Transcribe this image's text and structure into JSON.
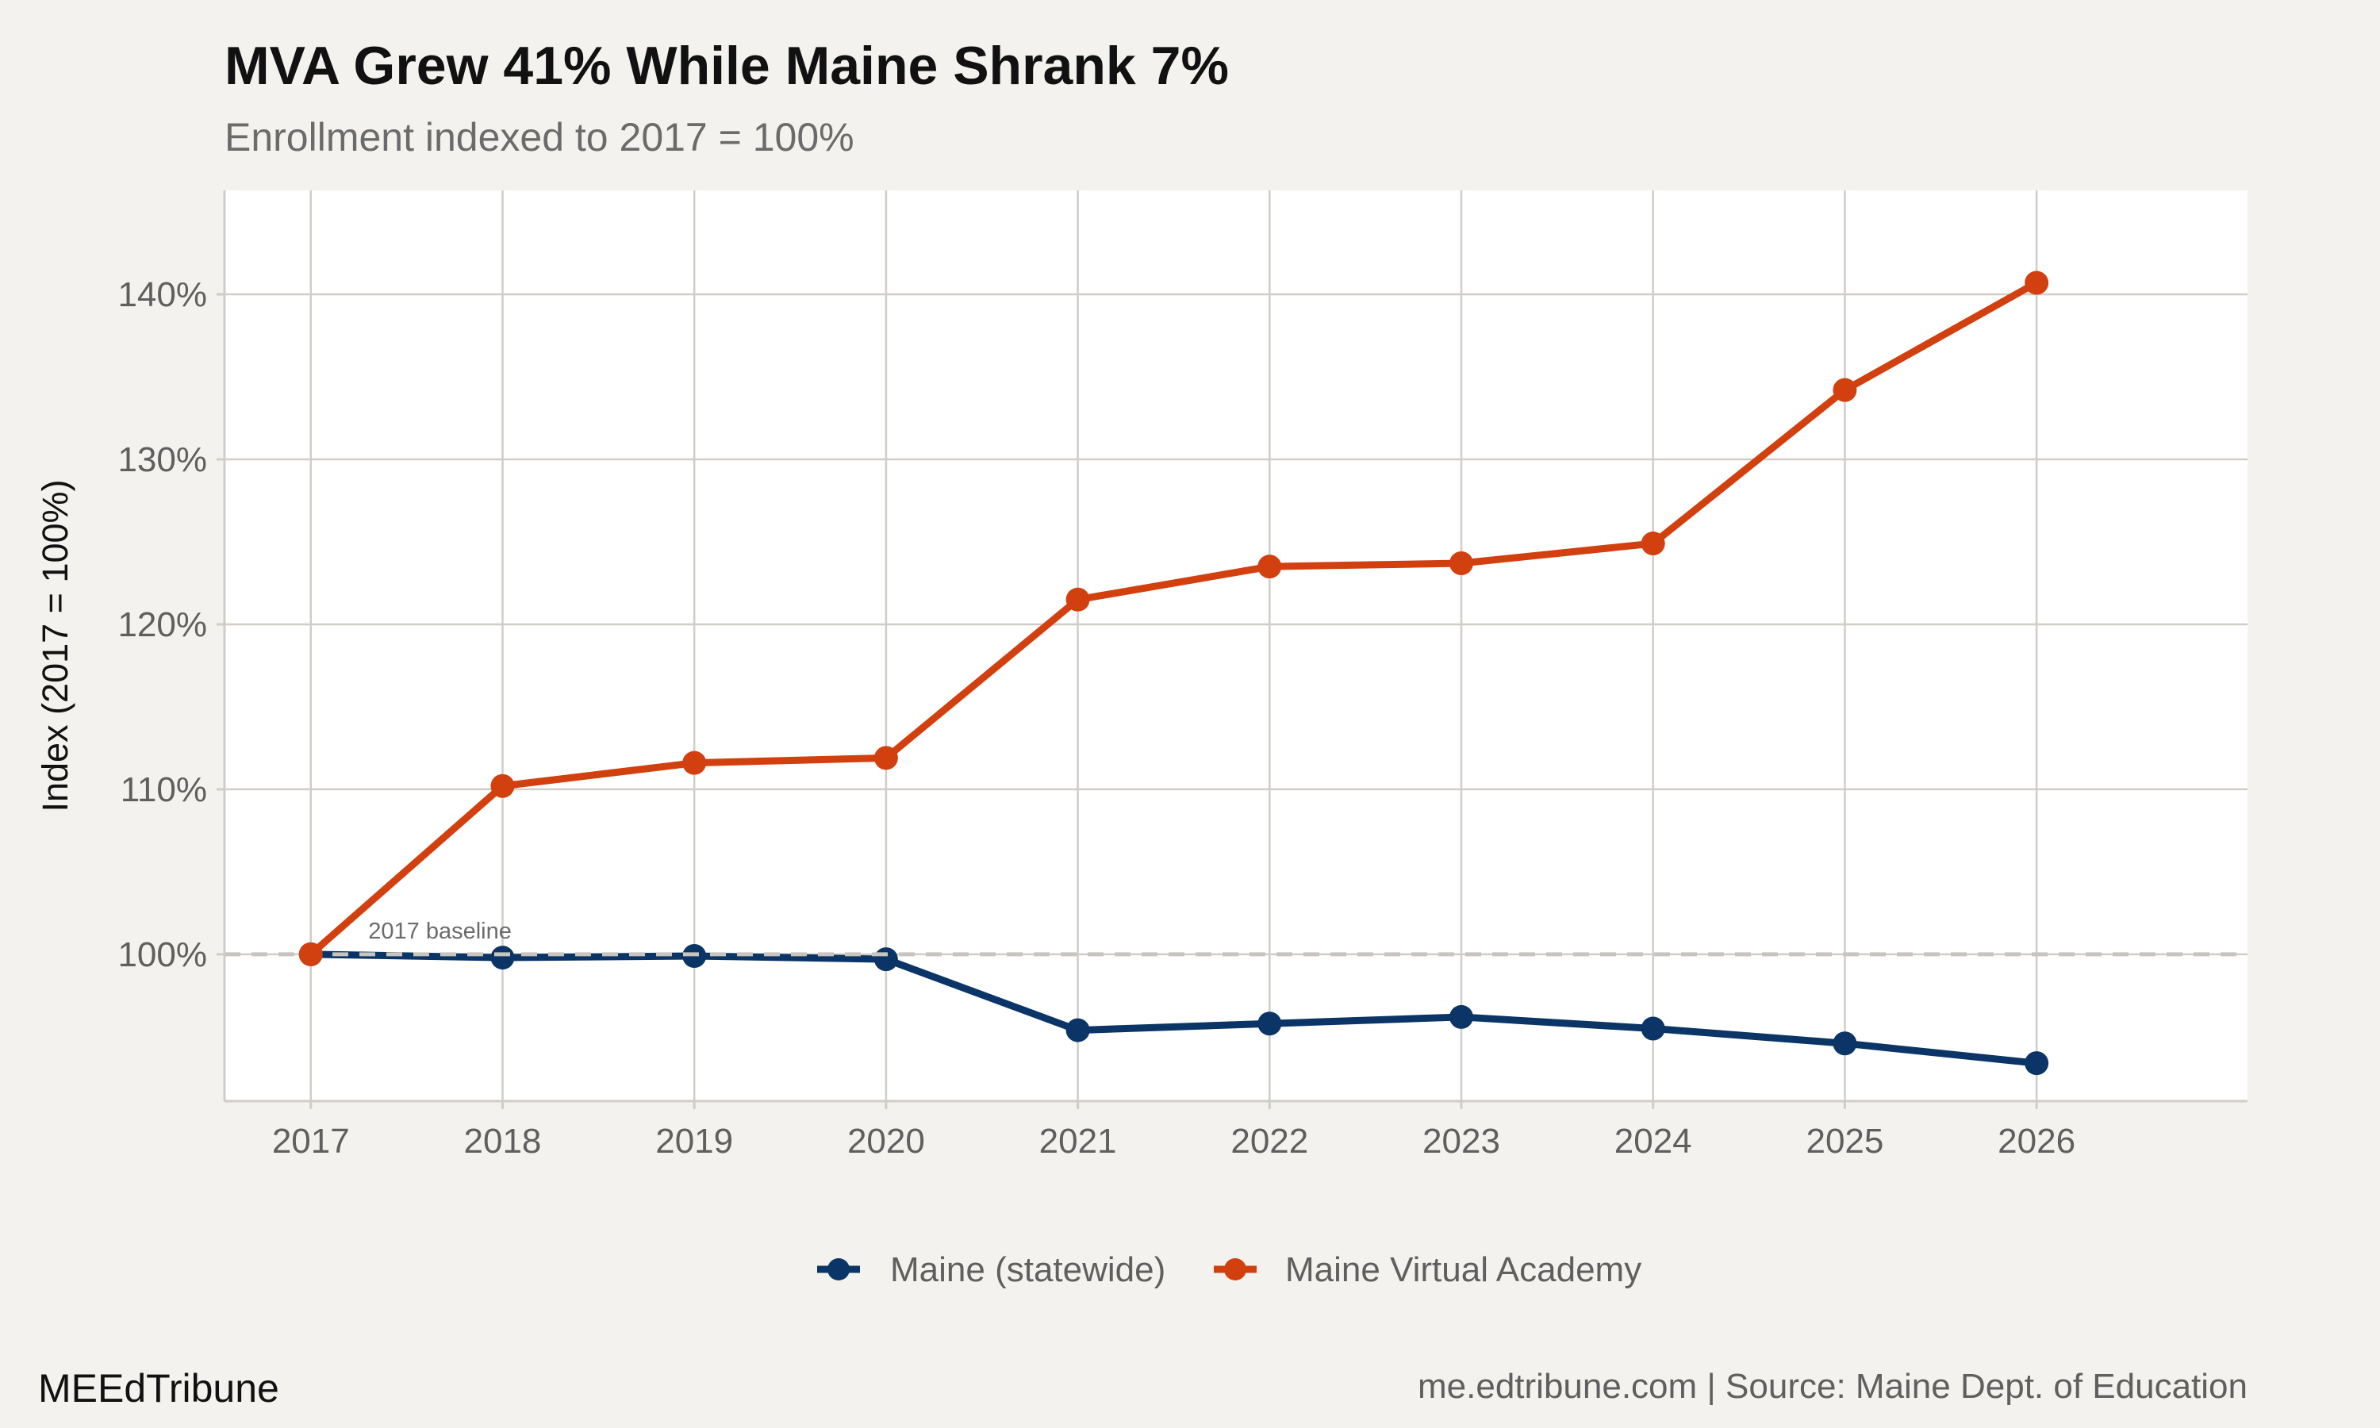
{
  "colors": {
    "background": "#f4f2ee",
    "panel": "#ffffff",
    "grid": "#d0cdc7",
    "maine": "#0b3566",
    "mva": "#d2400f",
    "baseline": "#c9c4bd"
  },
  "footer": {
    "brand": "MEEdTribune",
    "source": "me.edtribune.com | Source: Maine Dept. of Education"
  },
  "chart_data": {
    "type": "line",
    "title": "MVA Grew 41% While Maine Shrank 7%",
    "subtitle": "Enrollment indexed to 2017 = 100%",
    "xlabel": "",
    "ylabel": "Index (2017 = 100%)",
    "x": [
      2017,
      2018,
      2019,
      2020,
      2021,
      2022,
      2023,
      2024,
      2025,
      2026
    ],
    "x_tick_labels": [
      "2017",
      "2018",
      "2019",
      "2020",
      "2021",
      "2022",
      "2023",
      "2024",
      "2025",
      "2026"
    ],
    "xlim": [
      2016.55,
      2027.1
    ],
    "ylim": [
      91.1,
      146.3
    ],
    "y_ticks": [
      100,
      110,
      120,
      130,
      140
    ],
    "y_tick_labels": [
      "100%",
      "110%",
      "120%",
      "130%",
      "140%"
    ],
    "grid": true,
    "legend_position": "bottom",
    "series": [
      {
        "name": "Maine (statewide)",
        "color": "#0b3566",
        "values": [
          100.0,
          99.8,
          99.9,
          99.7,
          95.4,
          95.8,
          96.2,
          95.5,
          94.6,
          93.4
        ]
      },
      {
        "name": "Maine Virtual Academy",
        "color": "#d2400f",
        "values": [
          100.0,
          110.2,
          111.6,
          111.9,
          121.5,
          123.5,
          123.7,
          124.9,
          134.2,
          140.7
        ]
      }
    ],
    "reference_line": {
      "y": 100,
      "style": "dashed",
      "label": "2017 baseline",
      "label_x": 2017.3
    }
  }
}
